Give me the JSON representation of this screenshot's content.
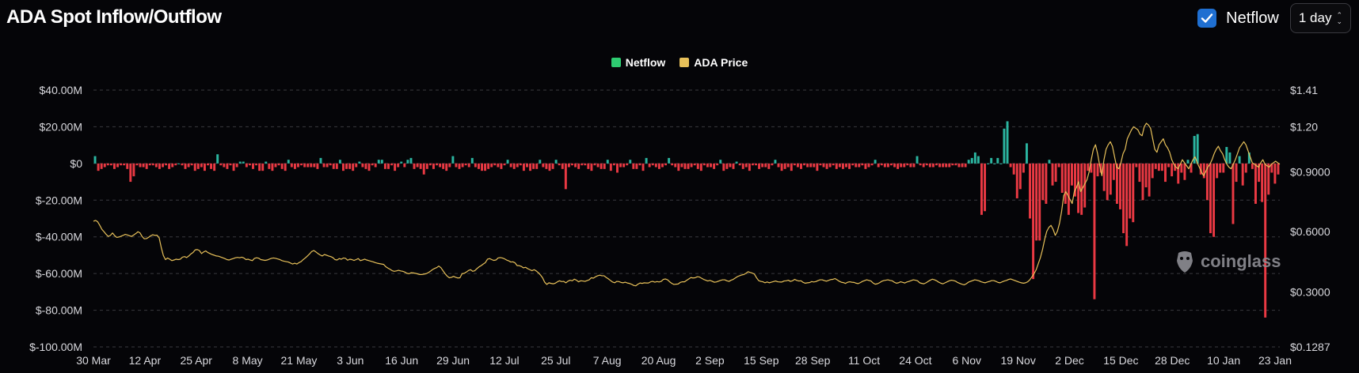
{
  "header": {
    "title": "ADA Spot Inflow/Outflow",
    "netflow_checkbox": {
      "checked": true,
      "label": "Netflow"
    },
    "interval_select": {
      "value": "1 day"
    }
  },
  "watermark": {
    "text": "coinglass",
    "icon": "coinglass-logo-icon"
  },
  "colors": {
    "positive": "#2bb5a0",
    "negative": "#ea3943",
    "price": "#e8c15a",
    "grid": "#3a3a3f",
    "checkbox": "#1f6fd1"
  },
  "chart_data": {
    "type": "bar",
    "title": "ADA Spot Inflow/Outflow",
    "legend": {
      "placement": "top-center",
      "entries": [
        "Netflow",
        "ADA Price"
      ]
    },
    "grid": true,
    "x_tick_labels": [
      "30 Mar",
      "12 Apr",
      "25 Apr",
      "8 May",
      "21 May",
      "3 Jun",
      "16 Jun",
      "29 Jun",
      "12 Jul",
      "25 Jul",
      "7 Aug",
      "20 Aug",
      "2 Sep",
      "15 Sep",
      "28 Sep",
      "11 Oct",
      "24 Oct",
      "6 Nov",
      "19 Nov",
      "2 Dec",
      "15 Dec",
      "28 Dec",
      "10 Jan",
      "23 Jan"
    ],
    "y_left": {
      "label": "",
      "ylim": [
        -100,
        40
      ],
      "unit": "M USD",
      "tick_labels": [
        "$40.00M",
        "$20.00M",
        "$0",
        "$-20.00M",
        "$-40.00M",
        "$-60.00M",
        "$-80.00M",
        "$-100.00M"
      ],
      "tick_values": [
        40,
        20,
        0,
        -20,
        -40,
        -60,
        -80,
        -100
      ]
    },
    "y_right": {
      "label": "",
      "tick_labels": [
        "$1.41",
        "$1.20",
        "$0.9000",
        "$0.6000",
        "$0.3000",
        "$0.1287"
      ],
      "tick_values": [
        1.41,
        1.2,
        0.9,
        0.6,
        0.3,
        0.1287
      ]
    },
    "series": [
      {
        "name": "Netflow",
        "type": "bar",
        "values": [
          4,
          -4,
          -3,
          -2,
          -1,
          -1,
          -3,
          -2,
          -1,
          -1,
          -3,
          -10,
          -7,
          -1,
          -2,
          -2,
          -3,
          -1,
          -1,
          -2,
          -3,
          -2,
          -1,
          -3,
          -2,
          -1,
          0,
          -1,
          -3,
          -2,
          -1,
          -4,
          -3,
          -2,
          -4,
          -1,
          -3,
          -4,
          5,
          -1,
          -2,
          -3,
          -1,
          -4,
          -2,
          1,
          1,
          -2,
          -1,
          -3,
          -1,
          -4,
          -4,
          1,
          -3,
          -4,
          -2,
          -1,
          -3,
          -4,
          2,
          -2,
          -3,
          -2,
          -1,
          -2,
          -2,
          -2,
          -2,
          -3,
          3,
          -2,
          -2,
          -1,
          -3,
          -3,
          2,
          -4,
          -3,
          -3,
          -4,
          -2,
          1,
          -2,
          -3,
          -4,
          -1,
          -2,
          2,
          2,
          -3,
          -3,
          -1,
          -4,
          -2,
          1,
          -2,
          2,
          3,
          -3,
          -2,
          -3,
          -6,
          -3,
          -1,
          -3,
          -1,
          -2,
          -3,
          -4,
          -2,
          4,
          -2,
          -3,
          -2,
          -1,
          -2,
          3,
          -2,
          -3,
          -4,
          -4,
          -3,
          -2,
          -1,
          -2,
          -3,
          -1,
          2,
          -2,
          -3,
          -2,
          -1,
          -4,
          -2,
          -4,
          -3,
          -3,
          2,
          -2,
          -3,
          -4,
          -3,
          2,
          -1,
          -3,
          -14,
          -2,
          -1,
          -2,
          -3,
          -1,
          -1,
          -3,
          -4,
          -1,
          -2,
          -3,
          -3,
          2,
          -4,
          -1,
          -5,
          -2,
          -2,
          -1,
          2,
          -3,
          -3,
          -1,
          -4,
          3,
          -2,
          -1,
          -2,
          -3,
          -2,
          -1,
          3,
          -1,
          -2,
          -4,
          -2,
          -3,
          -3,
          -2,
          -1,
          -3,
          -4,
          -1,
          -2,
          -2,
          -3,
          -1,
          2,
          -4,
          -3,
          -2,
          -3,
          1,
          -1,
          -3,
          -2,
          -4,
          -1,
          -1,
          -3,
          -2,
          -2,
          -3,
          -1,
          2,
          -2,
          -4,
          -3,
          -2,
          -4,
          -1,
          -2,
          -3,
          -1,
          -2,
          -2,
          -2,
          -4,
          -1,
          -2,
          -3,
          -2,
          -1,
          -3,
          -2,
          -3,
          -2,
          -3,
          -1,
          -2,
          -2,
          -1,
          -3,
          -2,
          -1,
          2,
          -2,
          -1,
          -2,
          -2,
          -1,
          -2,
          -3,
          -2,
          -2,
          -1,
          -2,
          -2,
          4,
          -1,
          -2,
          -1,
          -2,
          -2,
          -1,
          -2,
          -2,
          -2,
          -2,
          -1,
          -1,
          -2,
          -2,
          -2,
          2,
          3,
          6,
          4,
          -28,
          -26,
          0,
          3,
          0,
          3,
          0,
          19,
          23,
          -2,
          -6,
          -19,
          -14,
          -5,
          11,
          -30,
          -63,
          -42,
          -42,
          -20,
          -22,
          2,
          -12,
          -10,
          -2,
          -16,
          -22,
          -28,
          -12,
          -18,
          -27,
          -28,
          -24,
          -4,
          -5,
          -74,
          -7,
          -5,
          -15,
          -20,
          -17,
          -9,
          -22,
          -25,
          -38,
          -45,
          -30,
          -32,
          -2,
          -10,
          -20,
          -13,
          -18,
          -8,
          -3,
          -4,
          -4,
          -10,
          -2,
          -7,
          -4,
          -11,
          -5,
          -9,
          2,
          -5,
          15,
          16,
          -6,
          -8,
          -20,
          -38,
          -40,
          -8,
          -5,
          -5,
          9,
          6,
          -33,
          -10,
          4,
          -12,
          -5,
          6,
          -3,
          -22,
          -10,
          -21,
          -84,
          -17,
          -5,
          -11,
          -6
        ],
        "color": "#2bb5a0",
        "negative_color": "#ea3943"
      },
      {
        "name": "ADA Price",
        "type": "line",
        "axis": "right",
        "values": [
          0.651,
          0.655,
          0.648,
          0.63,
          0.61,
          0.598,
          0.585,
          0.575,
          0.58,
          0.592,
          0.579,
          0.57,
          0.572,
          0.576,
          0.58,
          0.585,
          0.582,
          0.578,
          0.575,
          0.582,
          0.589,
          0.598,
          0.592,
          0.574,
          0.563,
          0.564,
          0.57,
          0.578,
          0.583,
          0.58,
          0.581,
          0.568,
          0.52,
          0.48,
          0.46,
          0.468,
          0.462,
          0.455,
          0.458,
          0.462,
          0.46,
          0.462,
          0.472,
          0.475,
          0.47,
          0.478,
          0.488,
          0.495,
          0.508,
          0.51,
          0.505,
          0.49,
          0.498,
          0.503,
          0.495,
          0.49,
          0.485,
          0.482,
          0.478,
          0.477,
          0.473,
          0.469,
          0.465,
          0.46,
          0.458,
          0.462,
          0.465,
          0.469,
          0.471,
          0.469,
          0.472,
          0.468,
          0.46,
          0.462,
          0.458,
          0.455,
          0.466,
          0.469,
          0.467,
          0.46,
          0.458,
          0.456,
          0.458,
          0.462,
          0.466,
          0.468,
          0.466,
          0.463,
          0.46,
          0.455,
          0.452,
          0.45,
          0.448,
          0.443,
          0.438,
          0.442,
          0.438,
          0.445,
          0.45,
          0.46,
          0.468,
          0.478,
          0.488,
          0.5,
          0.505,
          0.498,
          0.49,
          0.483,
          0.478,
          0.485,
          0.482,
          0.478,
          0.475,
          0.47,
          0.46,
          0.458,
          0.465,
          0.462,
          0.468,
          0.466,
          0.457,
          0.462,
          0.46,
          0.456,
          0.46,
          0.465,
          0.455,
          0.458,
          0.462,
          0.458,
          0.455,
          0.452,
          0.449,
          0.445,
          0.442,
          0.44,
          0.438,
          0.436,
          0.425,
          0.418,
          0.412,
          0.405,
          0.402,
          0.404,
          0.407,
          0.404,
          0.402,
          0.398,
          0.392,
          0.39,
          0.395,
          0.394,
          0.392,
          0.389,
          0.386,
          0.386,
          0.388,
          0.39,
          0.395,
          0.402,
          0.41,
          0.416,
          0.42,
          0.428,
          0.42,
          0.405,
          0.39,
          0.378,
          0.37,
          0.372,
          0.377,
          0.372,
          0.369,
          0.37,
          0.39,
          0.392,
          0.398,
          0.406,
          0.41,
          0.402,
          0.405,
          0.415,
          0.424,
          0.43,
          0.438,
          0.445,
          0.462,
          0.465,
          0.46,
          0.456,
          0.458,
          0.468,
          0.47,
          0.468,
          0.464,
          0.458,
          0.454,
          0.448,
          0.449,
          0.444,
          0.43,
          0.43,
          0.426,
          0.419,
          0.422,
          0.415,
          0.41,
          0.405,
          0.41,
          0.404,
          0.395,
          0.384,
          0.37,
          0.348,
          0.337,
          0.345,
          0.342,
          0.34,
          0.343,
          0.35,
          0.355,
          0.351,
          0.352,
          0.345,
          0.353,
          0.358,
          0.355,
          0.363,
          0.358,
          0.35,
          0.355,
          0.354,
          0.352,
          0.356,
          0.36,
          0.37,
          0.368,
          0.375,
          0.38,
          0.383,
          0.38,
          0.38,
          0.372,
          0.365,
          0.357,
          0.349,
          0.345,
          0.352,
          0.351,
          0.347,
          0.345,
          0.348,
          0.344,
          0.342,
          0.338,
          0.332,
          0.33,
          0.338,
          0.344,
          0.342,
          0.345,
          0.344,
          0.344,
          0.35,
          0.352,
          0.348,
          0.351,
          0.349,
          0.352,
          0.362,
          0.364,
          0.36,
          0.35,
          0.342,
          0.337,
          0.338,
          0.339,
          0.347,
          0.35,
          0.35,
          0.357,
          0.364,
          0.371,
          0.369,
          0.37,
          0.375,
          0.374,
          0.368,
          0.362,
          0.358,
          0.354,
          0.357,
          0.353,
          0.348,
          0.349,
          0.353,
          0.357,
          0.36,
          0.36,
          0.355,
          0.352,
          0.358,
          0.362,
          0.369,
          0.376,
          0.38,
          0.384,
          0.386,
          0.392,
          0.4,
          0.396,
          0.393,
          0.388,
          0.37,
          0.356,
          0.352,
          0.35,
          0.345,
          0.349,
          0.345,
          0.348,
          0.351,
          0.354,
          0.35,
          0.349,
          0.349,
          0.354,
          0.355,
          0.358,
          0.352,
          0.355,
          0.362,
          0.357,
          0.354,
          0.355,
          0.347,
          0.343,
          0.345,
          0.346,
          0.351,
          0.349,
          0.351,
          0.356,
          0.36,
          0.36,
          0.356,
          0.353,
          0.357,
          0.361,
          0.362,
          0.366,
          0.36,
          0.353,
          0.348,
          0.346,
          0.342,
          0.348,
          0.35,
          0.348,
          0.347,
          0.343,
          0.341,
          0.346,
          0.352,
          0.356,
          0.36,
          0.357,
          0.354,
          0.344,
          0.338,
          0.34,
          0.345,
          0.352,
          0.356,
          0.358,
          0.36,
          0.357,
          0.355,
          0.348,
          0.343,
          0.345,
          0.35,
          0.347,
          0.344,
          0.349,
          0.352,
          0.356,
          0.36,
          0.358,
          0.355,
          0.345,
          0.342,
          0.34,
          0.345,
          0.352,
          0.358,
          0.363,
          0.36,
          0.355,
          0.348,
          0.343,
          0.34,
          0.345,
          0.35,
          0.355,
          0.358,
          0.356,
          0.353,
          0.346,
          0.342,
          0.338,
          0.335,
          0.34,
          0.348,
          0.352,
          0.356,
          0.36,
          0.358,
          0.355,
          0.35,
          0.347,
          0.345,
          0.349,
          0.352,
          0.356,
          0.356,
          0.352,
          0.347,
          0.345,
          0.35,
          0.354,
          0.357,
          0.362,
          0.364,
          0.36,
          0.356,
          0.352,
          0.348,
          0.345,
          0.343,
          0.345,
          0.35,
          0.36,
          0.375,
          0.39,
          0.41,
          0.44,
          0.47,
          0.51,
          0.56,
          0.6,
          0.62,
          0.63,
          0.61,
          0.58,
          0.6,
          0.64,
          0.7,
          0.78,
          0.8,
          0.78,
          0.76,
          0.74,
          0.8,
          0.82,
          0.85,
          0.8,
          0.82,
          0.84,
          0.86,
          0.9,
          0.98,
          1.05,
          1.08,
          1.02,
          0.94,
          0.88,
          0.98,
          1.05,
          1.08,
          1.1,
          1.07,
          1.0,
          0.93,
          0.92,
          0.96,
          1.02,
          1.05,
          1.12,
          1.15,
          1.18,
          1.2,
          1.19,
          1.18,
          1.15,
          1.14,
          1.2,
          1.22,
          1.21,
          1.19,
          1.12,
          1.05,
          1.03,
          1.08,
          1.1,
          1.12,
          1.08,
          1.06,
          1.03,
          0.98,
          0.95,
          0.93,
          0.92,
          0.95,
          0.98,
          0.96,
          0.94,
          0.92,
          0.95,
          0.98,
          1.0,
          0.96,
          0.93,
          0.9,
          0.88,
          0.9,
          0.93,
          0.95,
          0.98,
          1.02,
          1.05,
          1.07,
          1.04,
          1.02,
          0.98,
          0.95,
          0.93,
          0.92,
          0.95,
          0.98,
          1.02,
          1.06,
          1.08,
          1.1,
          1.08,
          1.04,
          1.0,
          0.96,
          0.95,
          0.94,
          0.93,
          0.96,
          0.98,
          0.95,
          0.94,
          0.93,
          0.95,
          0.96,
          0.97,
          0.96,
          0.95
        ]
      }
    ]
  }
}
